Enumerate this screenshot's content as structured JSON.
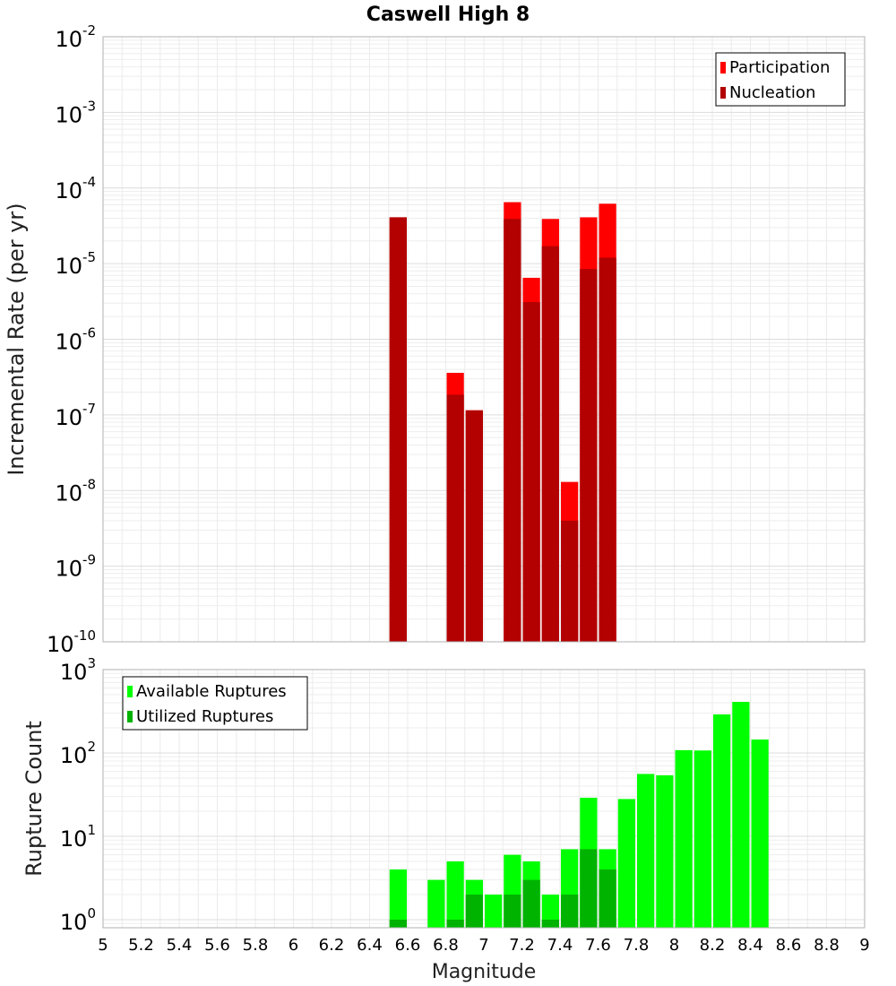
{
  "chart_data": [
    {
      "type": "bar",
      "title": "Caswell High 8",
      "xlabel": "",
      "ylabel": "Incremental Rate (per yr)",
      "yscale": "log",
      "ylim": [
        1e-10,
        0.01
      ],
      "xlim": [
        5,
        9
      ],
      "bin_width": 0.1,
      "grid": true,
      "legend_position": "top-right",
      "y_tick_labels": [
        {
          "base": "10",
          "exp": "-2"
        },
        {
          "base": "10",
          "exp": "-3"
        },
        {
          "base": "10",
          "exp": "-4"
        },
        {
          "base": "10",
          "exp": "-5"
        },
        {
          "base": "10",
          "exp": "-6"
        },
        {
          "base": "10",
          "exp": "-7"
        },
        {
          "base": "10",
          "exp": "-8"
        },
        {
          "base": "10",
          "exp": "-9"
        },
        {
          "base": "10",
          "exp": "-10"
        }
      ],
      "x": [
        6.55,
        6.85,
        6.95,
        7.15,
        7.25,
        7.35,
        7.45,
        7.55,
        7.65
      ],
      "series": [
        {
          "name": "Participation",
          "color": "#ff0000",
          "values": [
            4.1e-05,
            3.6e-07,
            1.15e-07,
            6.5e-05,
            6.5e-06,
            3.9e-05,
            1.3e-08,
            4.1e-05,
            6.2e-05
          ]
        },
        {
          "name": "Nucleation",
          "color": "#b30000",
          "values": [
            4.1e-05,
            1.85e-07,
            1.15e-07,
            3.9e-05,
            3.1e-06,
            1.7e-05,
            4e-09,
            8.5e-06,
            1.2e-05
          ]
        }
      ]
    },
    {
      "type": "bar",
      "title": "",
      "xlabel": "Magnitude",
      "ylabel": "Rupture Count",
      "yscale": "log",
      "ylim": [
        0.8,
        1000
      ],
      "xlim": [
        5,
        9
      ],
      "bin_width": 0.1,
      "grid": true,
      "legend_position": "top-left",
      "x_tick_labels": [
        "5",
        "5.2",
        "5.4",
        "5.6",
        "5.8",
        "6",
        "6.2",
        "6.4",
        "6.6",
        "6.8",
        "7",
        "7.2",
        "7.4",
        "7.6",
        "7.8",
        "8",
        "8.2",
        "8.4",
        "8.6",
        "8.8",
        "9"
      ],
      "y_tick_labels": [
        {
          "base": "10",
          "exp": "3"
        },
        {
          "base": "10",
          "exp": "2"
        },
        {
          "base": "10",
          "exp": "1"
        },
        {
          "base": "10",
          "exp": "0"
        }
      ],
      "x": [
        6.55,
        6.75,
        6.85,
        6.95,
        7.05,
        7.15,
        7.25,
        7.35,
        7.45,
        7.55,
        7.65,
        7.75,
        7.85,
        7.95,
        8.05,
        8.15,
        8.25,
        8.35,
        8.45
      ],
      "series": [
        {
          "name": "Available Ruptures",
          "color": "#00ff00",
          "values": [
            4,
            3,
            5,
            3,
            2,
            6,
            5,
            2,
            7,
            29,
            7,
            28,
            56,
            54,
            108,
            107,
            290,
            410,
            145
          ]
        },
        {
          "name": "Utilized Ruptures",
          "color": "#00b300",
          "values": [
            1,
            0,
            1,
            2,
            0,
            2,
            3,
            1,
            2,
            7,
            4,
            0,
            0,
            0,
            0,
            0,
            0,
            0,
            0
          ]
        }
      ]
    }
  ]
}
